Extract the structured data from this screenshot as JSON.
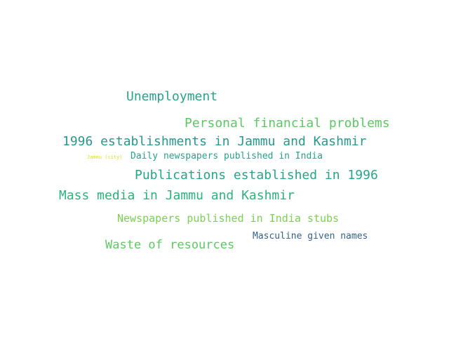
{
  "words": [
    {
      "text": "Unemployment",
      "color": "#2aa38a"
    },
    {
      "text": "Personal financial problems",
      "color": "#5cc863"
    },
    {
      "text": "1996 establishments in Jammu and Kashmir",
      "color": "#26998c"
    },
    {
      "text": "Jammu (city)",
      "color": "#d8e219"
    },
    {
      "text": "Daily newspapers published in India",
      "color": "#2ba08b"
    },
    {
      "text": "Publications established in 1996",
      "color": "#25a58a"
    },
    {
      "text": "Mass media in Jammu and Kashmir",
      "color": "#2db27d"
    },
    {
      "text": "Newspapers published in India stubs",
      "color": "#7ad151"
    },
    {
      "text": "Masculine given names",
      "color": "#33638d"
    },
    {
      "text": "Waste of resources",
      "color": "#5ec962"
    }
  ]
}
